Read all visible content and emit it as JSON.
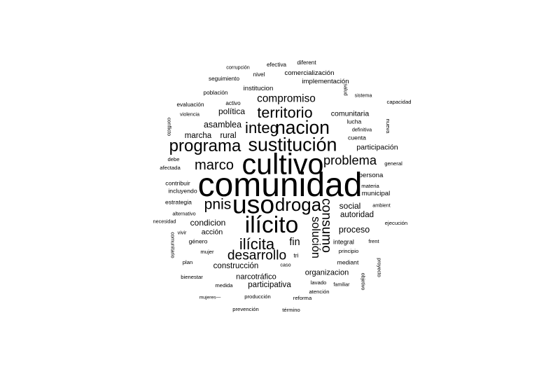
{
  "word_cloud": {
    "words": [
      {
        "text": "comunidad",
        "weight": 100
      },
      {
        "text": "cultivo",
        "weight": 86
      },
      {
        "text": "uso",
        "weight": 78
      },
      {
        "text": "ilícito",
        "weight": 70
      },
      {
        "text": "sustitución",
        "weight": 56
      },
      {
        "text": "nacion",
        "weight": 55
      },
      {
        "text": "droga",
        "weight": 54
      },
      {
        "text": "programa",
        "weight": 50
      },
      {
        "text": "integ",
        "weight": 46
      },
      {
        "text": "territorio",
        "weight": 45
      },
      {
        "text": "ilícita",
        "weight": 46
      },
      {
        "text": "pnis",
        "weight": 44
      },
      {
        "text": "marco",
        "weight": 42
      },
      {
        "text": "consumo",
        "weight": 40
      },
      {
        "text": "problema",
        "weight": 38
      },
      {
        "text": "desarrollo",
        "weight": 40
      },
      {
        "text": "solución",
        "weight": 34
      },
      {
        "text": "compromiso",
        "weight": 32
      },
      {
        "text": "fin",
        "weight": 30
      },
      {
        "text": "asamblea",
        "weight": 26
      },
      {
        "text": "política",
        "weight": 25
      },
      {
        "text": "marcha",
        "weight": 24
      },
      {
        "text": "rural",
        "weight": 24
      },
      {
        "text": "condicion",
        "weight": 25
      },
      {
        "text": "social",
        "weight": 25
      },
      {
        "text": "proceso",
        "weight": 26
      },
      {
        "text": "construcción",
        "weight": 24
      },
      {
        "text": "participativa",
        "weight": 24
      },
      {
        "text": "narcotráfico",
        "weight": 23
      },
      {
        "text": "organizacion",
        "weight": 23
      },
      {
        "text": "autoridad",
        "weight": 24
      },
      {
        "text": "participación",
        "weight": 22
      },
      {
        "text": "comunitaria",
        "weight": 22
      },
      {
        "text": "acción",
        "weight": 22
      },
      {
        "text": "persona",
        "weight": 20
      },
      {
        "text": "municipal",
        "weight": 20
      },
      {
        "text": "institucion",
        "weight": 20
      },
      {
        "text": "implementación",
        "weight": 20
      },
      {
        "text": "comercialización",
        "weight": 20
      },
      {
        "text": "integral",
        "weight": 19
      },
      {
        "text": "lucha",
        "weight": 18
      },
      {
        "text": "cuenta",
        "weight": 18
      },
      {
        "text": "estrategia",
        "weight": 18
      },
      {
        "text": "incluyendo",
        "weight": 18
      },
      {
        "text": "contribuir",
        "weight": 18
      },
      {
        "text": "género",
        "weight": 18
      },
      {
        "text": "mediant",
        "weight": 18
      },
      {
        "text": "efectiva",
        "weight": 17
      },
      {
        "text": "diferent",
        "weight": 17
      },
      {
        "text": "nivel",
        "weight": 17
      },
      {
        "text": "seguimiento",
        "weight": 17
      },
      {
        "text": "población",
        "weight": 17
      },
      {
        "text": "evaluación",
        "weight": 17
      },
      {
        "text": "activo",
        "weight": 17
      },
      {
        "text": "afectada",
        "weight": 16
      },
      {
        "text": "debe",
        "weight": 16
      },
      {
        "text": "materia",
        "weight": 16
      },
      {
        "text": "principio",
        "weight": 16
      },
      {
        "text": "frent",
        "weight": 16
      },
      {
        "text": "mujer",
        "weight": 16
      },
      {
        "text": "plan",
        "weight": 16
      },
      {
        "text": "caso",
        "weight": 15
      },
      {
        "text": "bienestar",
        "weight": 16
      },
      {
        "text": "medida",
        "weight": 16
      },
      {
        "text": "lavado",
        "weight": 16
      },
      {
        "text": "atención",
        "weight": 16
      },
      {
        "text": "reforma",
        "weight": 16
      },
      {
        "text": "producción",
        "weight": 16
      },
      {
        "text": "prevención",
        "weight": 16
      },
      {
        "text": "término",
        "weight": 16
      },
      {
        "text": "ejecución",
        "weight": 16
      },
      {
        "text": "general",
        "weight": 16
      },
      {
        "text": "capacidad",
        "weight": 16
      },
      {
        "text": "sistema",
        "weight": 15
      },
      {
        "text": "definitiva",
        "weight": 15
      },
      {
        "text": "ambient",
        "weight": 15
      },
      {
        "text": "familiar",
        "weight": 15
      },
      {
        "text": "alternativo",
        "weight": 15
      },
      {
        "text": "vivir",
        "weight": 15
      },
      {
        "text": "necesidad",
        "weight": 15
      },
      {
        "text": "violencia",
        "weight": 15
      },
      {
        "text": "corrupción",
        "weight": 15
      },
      {
        "text": "mujeres—",
        "weight": 14
      },
      {
        "text": "tri",
        "weight": 18
      },
      {
        "text": "salud",
        "weight": 15
      },
      {
        "text": "nueva",
        "weight": 16
      },
      {
        "text": "conflicto",
        "weight": 15
      },
      {
        "text": "comunitario",
        "weight": 15
      },
      {
        "text": "proyecto",
        "weight": 15
      },
      {
        "text": "objetivo",
        "weight": 15
      }
    ]
  }
}
